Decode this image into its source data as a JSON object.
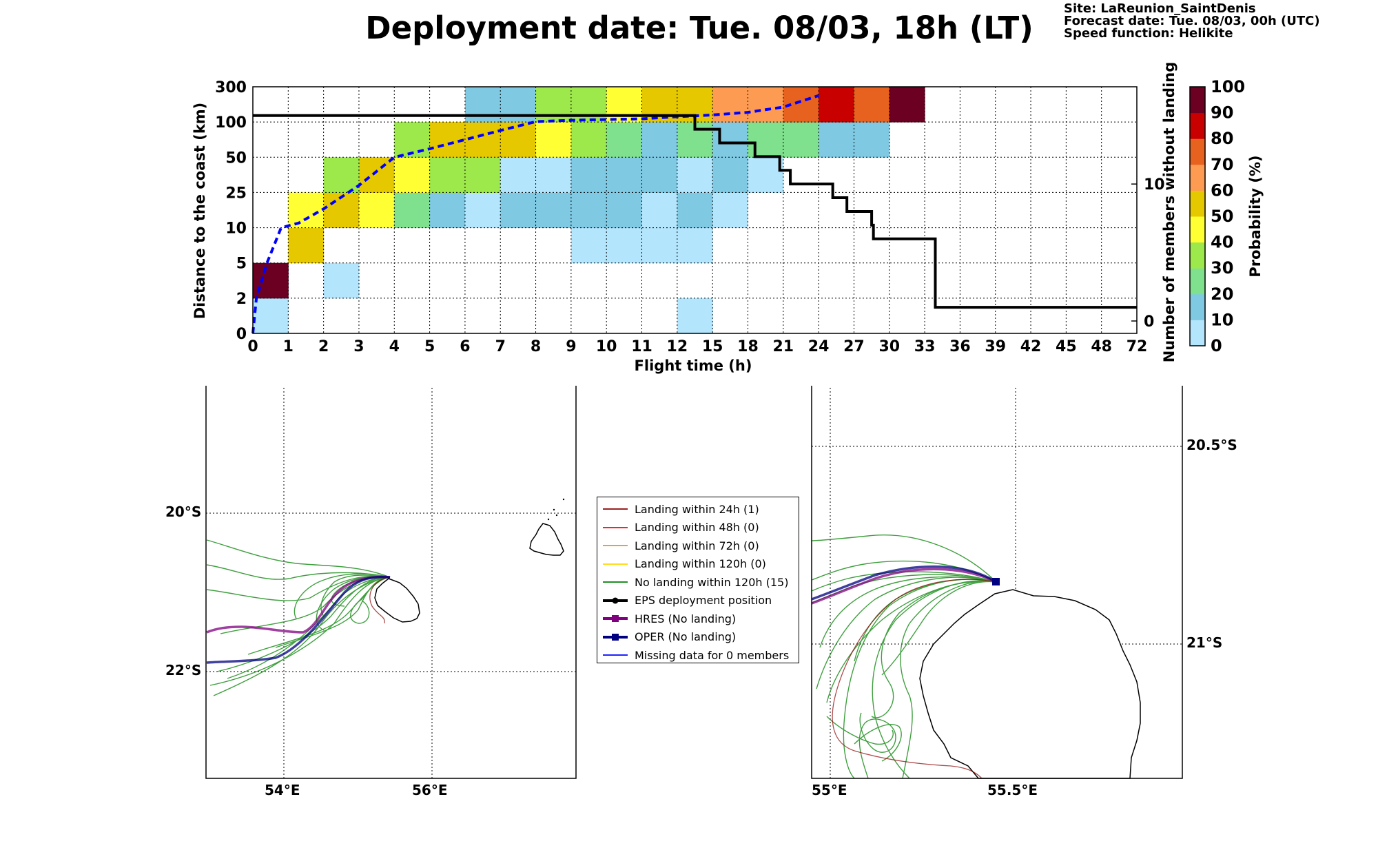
{
  "title": "Deployment date: Tue. 08/03, 18h (LT)",
  "meta": {
    "site": "Site: LaReunion_SaintDenis",
    "forecast": "Forecast date: Tue. 08/03, 00h (UTC)",
    "speed": "Speed function: Helikite"
  },
  "colors": {
    "track_landing_24h": "#8b0000",
    "track_landing_48h": "#ff0000",
    "track_landing_72h": "#ff8c00",
    "track_landing_120h": "#ffd700",
    "track_no_landing": "#008000",
    "track_eps_position": "#000000",
    "track_hres": "#800080",
    "track_oper": "#000080",
    "track_missing": "#0000ff",
    "median_line": "#0000ff",
    "members_step": "#000000"
  },
  "legend": [
    {
      "label": "Landing within 24h (1)",
      "kind": "line",
      "color": "#8b0000"
    },
    {
      "label": "Landing within 48h (0)",
      "kind": "line",
      "color": "#ff0000"
    },
    {
      "label": "Landing within 72h (0)",
      "kind": "line",
      "color": "#ff8c00"
    },
    {
      "label": "Landing within 120h (0)",
      "kind": "line",
      "color": "#ffd700"
    },
    {
      "label": "No landing within 120h (15)",
      "kind": "line",
      "color": "#008000"
    },
    {
      "label": "EPS deployment position",
      "kind": "dot",
      "color": "#000000"
    },
    {
      "label": "HRES (No landing)",
      "kind": "square",
      "color": "#800080"
    },
    {
      "label": "OPER (No landing)",
      "kind": "square",
      "color": "#000080"
    },
    {
      "label": "Missing data for 0 members",
      "kind": "line",
      "color": "#0000ff"
    }
  ],
  "maps": {
    "left": {
      "x_ticks": [
        "54°E",
        "56°E"
      ],
      "y_ticks": [
        "20°S",
        "22°S"
      ]
    },
    "right": {
      "x_ticks": [
        "55°E",
        "55.5°E"
      ],
      "y_ticks": [
        "20.5°S",
        "21°S"
      ]
    }
  },
  "chart_data": {
    "type": "heatmap",
    "xlabel": "Flight time (h)",
    "ylabel": "Distance to the coast (km)",
    "y2label": "Number of members without landing",
    "colorbar_label": "Probability (%)",
    "x_ticks": [
      "0",
      "1",
      "2",
      "3",
      "4",
      "5",
      "6",
      "7",
      "8",
      "9",
      "10",
      "11",
      "12",
      "15",
      "18",
      "21",
      "24",
      "27",
      "30",
      "33",
      "36",
      "39",
      "42",
      "45",
      "48",
      "72"
    ],
    "y_ticks": [
      "0",
      "2",
      "5",
      "10",
      "25",
      "50",
      "100",
      "300"
    ],
    "y2_ticks": [
      "0",
      "10"
    ],
    "y2_range": [
      0,
      17
    ],
    "colorbar_ticks": [
      "0",
      "10",
      "20",
      "30",
      "40",
      "50",
      "60",
      "70",
      "80",
      "90",
      "100"
    ],
    "colorbar_colors": [
      "#b3e5fc",
      "#7fc9e3",
      "#7fe08d",
      "#9de84a",
      "#ffff33",
      "#e5c800",
      "#fd9b52",
      "#e8621f",
      "#c80000",
      "#6b0022"
    ],
    "grid": true,
    "cells": [
      {
        "x": 0,
        "y": 0,
        "p": 5
      },
      {
        "x": 0,
        "y": 1,
        "p": 95
      },
      {
        "x": 1,
        "y": 2,
        "p": 55
      },
      {
        "x": 1,
        "y": 3,
        "p": 45
      },
      {
        "x": 2,
        "y": 1,
        "p": 5
      },
      {
        "x": 2,
        "y": 3,
        "p": 55
      },
      {
        "x": 2,
        "y": 4,
        "p": 35
      },
      {
        "x": 3,
        "y": 3,
        "p": 45
      },
      {
        "x": 3,
        "y": 4,
        "p": 55
      },
      {
        "x": 4,
        "y": 3,
        "p": 25
      },
      {
        "x": 4,
        "y": 4,
        "p": 45
      },
      {
        "x": 4,
        "y": 5,
        "p": 35
      },
      {
        "x": 5,
        "y": 3,
        "p": 15
      },
      {
        "x": 5,
        "y": 4,
        "p": 35
      },
      {
        "x": 5,
        "y": 5,
        "p": 55
      },
      {
        "x": 6,
        "y": 3,
        "p": 5
      },
      {
        "x": 6,
        "y": 4,
        "p": 35
      },
      {
        "x": 6,
        "y": 5,
        "p": 55
      },
      {
        "x": 6,
        "y": 6,
        "p": 15
      },
      {
        "x": 7,
        "y": 3,
        "p": 15
      },
      {
        "x": 7,
        "y": 4,
        "p": 5
      },
      {
        "x": 7,
        "y": 5,
        "p": 55
      },
      {
        "x": 7,
        "y": 6,
        "p": 15
      },
      {
        "x": 8,
        "y": 3,
        "p": 15
      },
      {
        "x": 8,
        "y": 4,
        "p": 5
      },
      {
        "x": 8,
        "y": 5,
        "p": 45
      },
      {
        "x": 8,
        "y": 6,
        "p": 35
      },
      {
        "x": 9,
        "y": 2,
        "p": 5
      },
      {
        "x": 9,
        "y": 3,
        "p": 15
      },
      {
        "x": 9,
        "y": 4,
        "p": 15
      },
      {
        "x": 9,
        "y": 5,
        "p": 35
      },
      {
        "x": 9,
        "y": 6,
        "p": 35
      },
      {
        "x": 10,
        "y": 2,
        "p": 5
      },
      {
        "x": 10,
        "y": 3,
        "p": 15
      },
      {
        "x": 10,
        "y": 4,
        "p": 15
      },
      {
        "x": 10,
        "y": 5,
        "p": 25
      },
      {
        "x": 10,
        "y": 6,
        "p": 45
      },
      {
        "x": 11,
        "y": 2,
        "p": 5
      },
      {
        "x": 11,
        "y": 3,
        "p": 5
      },
      {
        "x": 11,
        "y": 4,
        "p": 15
      },
      {
        "x": 11,
        "y": 5,
        "p": 15
      },
      {
        "x": 11,
        "y": 6,
        "p": 55
      },
      {
        "x": 12,
        "y": 0,
        "p": 5
      },
      {
        "x": 12,
        "y": 2,
        "p": 5
      },
      {
        "x": 12,
        "y": 3,
        "p": 15
      },
      {
        "x": 12,
        "y": 4,
        "p": 5
      },
      {
        "x": 12,
        "y": 5,
        "p": 25
      },
      {
        "x": 12,
        "y": 6,
        "p": 55
      },
      {
        "x": 13,
        "y": 3,
        "p": 5
      },
      {
        "x": 13,
        "y": 4,
        "p": 15
      },
      {
        "x": 13,
        "y": 5,
        "p": 15
      },
      {
        "x": 13,
        "y": 6,
        "p": 65
      },
      {
        "x": 14,
        "y": 4,
        "p": 5
      },
      {
        "x": 14,
        "y": 5,
        "p": 25
      },
      {
        "x": 14,
        "y": 6,
        "p": 65
      },
      {
        "x": 15,
        "y": 5,
        "p": 25
      },
      {
        "x": 15,
        "y": 6,
        "p": 75
      },
      {
        "x": 16,
        "y": 5,
        "p": 15
      },
      {
        "x": 16,
        "y": 6,
        "p": 85
      },
      {
        "x": 17,
        "y": 5,
        "p": 15
      },
      {
        "x": 17,
        "y": 6,
        "p": 75
      },
      {
        "x": 18,
        "y": 6,
        "p": 95
      }
    ],
    "series": [
      {
        "type": "dashed-line",
        "points": [
          [
            0,
            0
          ],
          [
            0.1,
            2
          ],
          [
            0.4,
            5
          ],
          [
            0.8,
            10
          ],
          [
            1.3,
            12
          ],
          [
            2,
            18
          ],
          [
            3,
            30
          ],
          [
            4,
            50
          ],
          [
            5,
            62
          ],
          [
            6,
            75
          ],
          [
            7,
            88
          ],
          [
            8,
            102
          ],
          [
            9,
            110
          ],
          [
            10,
            114
          ],
          [
            11,
            118
          ],
          [
            12,
            130
          ],
          [
            13,
            140
          ],
          [
            14,
            155
          ],
          [
            15,
            185
          ],
          [
            16,
            250
          ]
        ]
      },
      {
        "type": "step",
        "points": [
          [
            0,
            15
          ],
          [
            12.5,
            15
          ],
          [
            12.5,
            14
          ],
          [
            13.2,
            14
          ],
          [
            13.2,
            13
          ],
          [
            14.2,
            13
          ],
          [
            14.2,
            12
          ],
          [
            14.9,
            12
          ],
          [
            14.9,
            11
          ],
          [
            15.2,
            11
          ],
          [
            15.2,
            10
          ],
          [
            16.4,
            10
          ],
          [
            16.4,
            9
          ],
          [
            16.8,
            9
          ],
          [
            16.8,
            8
          ],
          [
            17.5,
            8
          ],
          [
            17.5,
            7
          ],
          [
            17.55,
            7
          ],
          [
            17.55,
            6
          ],
          [
            19.3,
            6
          ],
          [
            19.3,
            1
          ],
          [
            25,
            1
          ]
        ]
      }
    ]
  }
}
